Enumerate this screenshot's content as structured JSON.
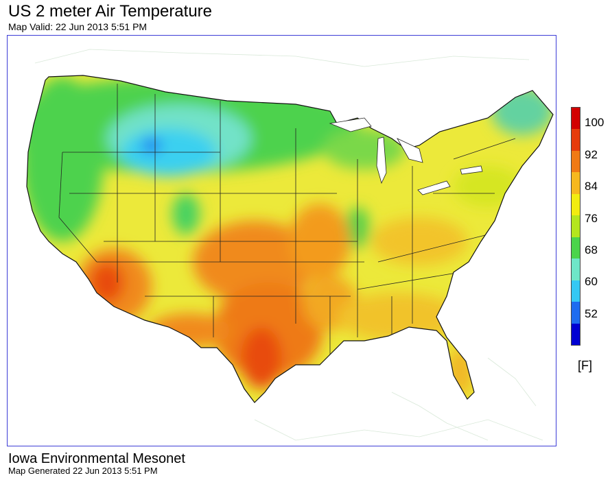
{
  "title": "US 2 meter Air Temperature",
  "subtitle": "Map Valid: 22 Jun 2013 5:51 PM",
  "legend": {
    "unit": "[F]",
    "labels": [
      "100",
      "92",
      "84",
      "76",
      "68",
      "60",
      "52"
    ],
    "colors": [
      "#0000d2",
      "#1e6cf0",
      "#34c8f4",
      "#6ee6c8",
      "#4bd44b",
      "#b4e61e",
      "#f2ec10",
      "#f6b81e",
      "#f07a14",
      "#e63c0c",
      "#d20000"
    ]
  },
  "footer": {
    "org": "Iowa Environmental Mesonet",
    "generated": "Map Generated 22 Jun 2013 5:51 PM"
  }
}
